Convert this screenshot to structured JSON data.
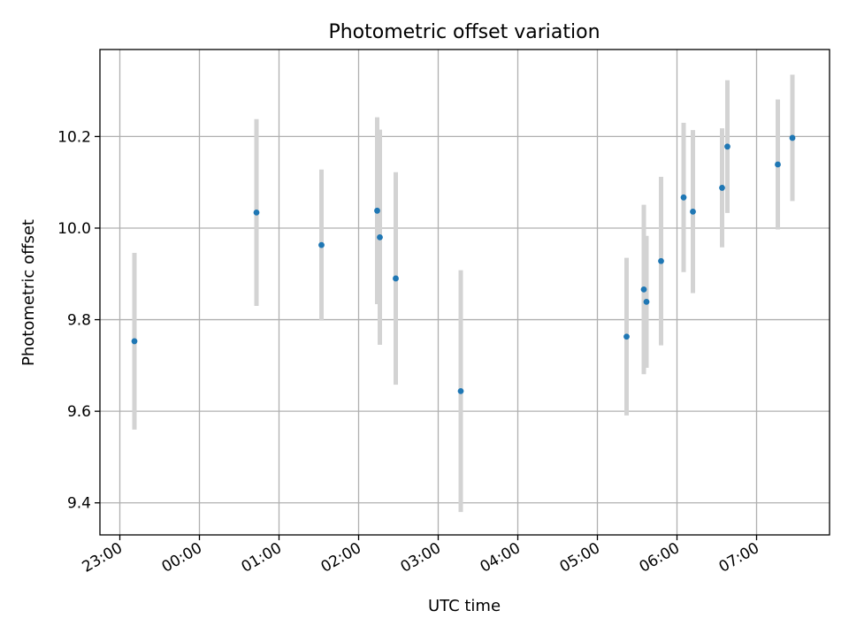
{
  "chart_data": {
    "type": "scatter",
    "title": "Photometric offset variation",
    "xlabel": "UTC time",
    "ylabel": "Photometric offset",
    "x_axis_kind": "time",
    "xlim": [
      "22:45",
      "07:55"
    ],
    "ylim": [
      9.33,
      10.39
    ],
    "x_ticks": [
      "23:00",
      "00:00",
      "01:00",
      "02:00",
      "03:00",
      "04:00",
      "05:00",
      "06:00",
      "07:00"
    ],
    "y_ticks": [
      9.4,
      9.6,
      9.8,
      10.0,
      10.2
    ],
    "y_tick_labels": [
      "9.4",
      "9.6",
      "9.8",
      "10.0",
      "10.2"
    ],
    "grid": true,
    "legend": "none",
    "marker_color": "#1f77b4",
    "errorbar_color": "#d3d3d3",
    "points": [
      {
        "x": "23:11",
        "y": 9.753,
        "err": 0.193
      },
      {
        "x": "00:43",
        "y": 10.034,
        "err": 0.204
      },
      {
        "x": "01:32",
        "y": 9.963,
        "err": 0.165
      },
      {
        "x": "02:14",
        "y": 10.038,
        "err": 0.204
      },
      {
        "x": "02:16",
        "y": 9.98,
        "err": 0.235
      },
      {
        "x": "02:28",
        "y": 9.89,
        "err": 0.232
      },
      {
        "x": "03:17",
        "y": 9.644,
        "err": 0.264
      },
      {
        "x": "05:22",
        "y": 9.763,
        "err": 0.172
      },
      {
        "x": "05:35",
        "y": 9.866,
        "err": 0.185
      },
      {
        "x": "05:37",
        "y": 9.839,
        "err": 0.144
      },
      {
        "x": "05:48",
        "y": 9.928,
        "err": 0.184
      },
      {
        "x": "06:05",
        "y": 10.067,
        "err": 0.163
      },
      {
        "x": "06:12",
        "y": 10.036,
        "err": 0.178
      },
      {
        "x": "06:34",
        "y": 10.088,
        "err": 0.13
      },
      {
        "x": "06:38",
        "y": 10.178,
        "err": 0.145
      },
      {
        "x": "07:16",
        "y": 10.139,
        "err": 0.142
      },
      {
        "x": "07:27",
        "y": 10.197,
        "err": 0.138
      }
    ]
  }
}
